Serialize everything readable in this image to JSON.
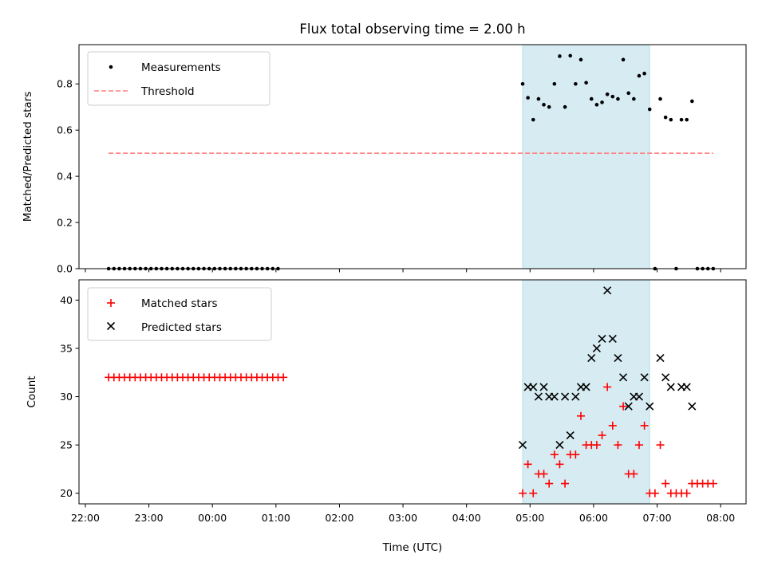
{
  "title": "Flux total observing time = 2.00 h",
  "xlabel": "Time (UTC)",
  "colors": {
    "measurement": "#000000",
    "threshold": "#ff7f7f",
    "matched": "#ff0000",
    "predicted": "#000000",
    "highlight": "#add8e6"
  },
  "chart_data": [
    {
      "type": "scatter",
      "ylabel": "Matched/Predicted stars",
      "xlim": [
        "21:54",
        "08:24"
      ],
      "ylim": [
        0,
        0.97
      ],
      "xticks": [
        "22:00",
        "23:00",
        "00:00",
        "01:00",
        "02:00",
        "03:00",
        "04:00",
        "05:00",
        "06:00",
        "07:00",
        "08:00"
      ],
      "yticks": [
        0.0,
        0.2,
        0.4,
        0.6,
        0.8
      ],
      "highlight_span": [
        "04:53",
        "06:53"
      ],
      "legend": {
        "placement": "upper-left",
        "entries": [
          "Measurements",
          "Threshold"
        ]
      },
      "threshold": {
        "name": "Threshold",
        "value": 0.5,
        "x": [
          "22:22",
          "07:53"
        ]
      },
      "series": [
        {
          "name": "Measurements",
          "points": [
            [
              "22:22",
              0
            ],
            [
              "22:27",
              0
            ],
            [
              "22:32",
              0
            ],
            [
              "22:37",
              0
            ],
            [
              "22:42",
              0
            ],
            [
              "22:47",
              0
            ],
            [
              "22:52",
              0
            ],
            [
              "22:57",
              0
            ],
            [
              "23:02",
              0
            ],
            [
              "23:07",
              0
            ],
            [
              "23:12",
              0
            ],
            [
              "23:17",
              0
            ],
            [
              "23:22",
              0
            ],
            [
              "23:27",
              0
            ],
            [
              "23:32",
              0
            ],
            [
              "23:37",
              0
            ],
            [
              "23:42",
              0
            ],
            [
              "23:47",
              0
            ],
            [
              "23:52",
              0
            ],
            [
              "23:57",
              0
            ],
            [
              "00:02",
              0
            ],
            [
              "00:07",
              0
            ],
            [
              "00:12",
              0
            ],
            [
              "00:17",
              0
            ],
            [
              "00:22",
              0
            ],
            [
              "00:27",
              0
            ],
            [
              "00:32",
              0
            ],
            [
              "00:37",
              0
            ],
            [
              "00:42",
              0
            ],
            [
              "00:47",
              0
            ],
            [
              "00:52",
              0
            ],
            [
              "00:57",
              0
            ],
            [
              "01:02",
              0
            ],
            [
              "04:53",
              0.8
            ],
            [
              "04:58",
              0.74
            ],
            [
              "05:03",
              0.645
            ],
            [
              "05:08",
              0.735
            ],
            [
              "05:13",
              0.71
            ],
            [
              "05:18",
              0.7
            ],
            [
              "05:23",
              0.8
            ],
            [
              "05:28",
              0.92
            ],
            [
              "05:33",
              0.7
            ],
            [
              "05:38",
              0.922
            ],
            [
              "05:43",
              0.8
            ],
            [
              "05:48",
              0.905
            ],
            [
              "05:53",
              0.805
            ],
            [
              "05:58",
              0.735
            ],
            [
              "06:03",
              0.71
            ],
            [
              "06:08",
              0.72
            ],
            [
              "06:13",
              0.755
            ],
            [
              "06:18",
              0.745
            ],
            [
              "06:23",
              0.735
            ],
            [
              "06:28",
              0.905
            ],
            [
              "06:33",
              0.76
            ],
            [
              "06:38",
              0.735
            ],
            [
              "06:43",
              0.835
            ],
            [
              "06:48",
              0.845
            ],
            [
              "06:53",
              0.69
            ],
            [
              "06:58",
              0
            ],
            [
              "07:03",
              0.735
            ],
            [
              "07:08",
              0.655
            ],
            [
              "07:13",
              0.645
            ],
            [
              "07:18",
              0
            ],
            [
              "07:23",
              0.645
            ],
            [
              "07:28",
              0.645
            ],
            [
              "07:33",
              0.725
            ],
            [
              "07:38",
              0
            ],
            [
              "07:43",
              0
            ],
            [
              "07:48",
              0
            ],
            [
              "07:53",
              0
            ]
          ]
        }
      ]
    },
    {
      "type": "scatter",
      "ylabel": "Count",
      "xlim": [
        "21:54",
        "08:24"
      ],
      "ylim": [
        18.9,
        42.1
      ],
      "xticks": [
        "22:00",
        "23:00",
        "00:00",
        "01:00",
        "02:00",
        "03:00",
        "04:00",
        "05:00",
        "06:00",
        "07:00",
        "08:00"
      ],
      "yticks": [
        20,
        25,
        30,
        35,
        40
      ],
      "highlight_span": [
        "04:53",
        "06:53"
      ],
      "legend": {
        "placement": "upper-left",
        "entries": [
          "Matched stars",
          "Predicted stars"
        ]
      },
      "series": [
        {
          "name": "Matched stars",
          "marker": "+",
          "points": [
            [
              "22:22",
              32
            ],
            [
              "22:27",
              32
            ],
            [
              "22:32",
              32
            ],
            [
              "22:37",
              32
            ],
            [
              "22:42",
              32
            ],
            [
              "22:47",
              32
            ],
            [
              "22:52",
              32
            ],
            [
              "22:57",
              32
            ],
            [
              "23:02",
              32
            ],
            [
              "23:07",
              32
            ],
            [
              "23:12",
              32
            ],
            [
              "23:17",
              32
            ],
            [
              "23:22",
              32
            ],
            [
              "23:27",
              32
            ],
            [
              "23:32",
              32
            ],
            [
              "23:37",
              32
            ],
            [
              "23:42",
              32
            ],
            [
              "23:47",
              32
            ],
            [
              "23:52",
              32
            ],
            [
              "23:57",
              32
            ],
            [
              "00:02",
              32
            ],
            [
              "00:07",
              32
            ],
            [
              "00:12",
              32
            ],
            [
              "00:17",
              32
            ],
            [
              "00:22",
              32
            ],
            [
              "00:27",
              32
            ],
            [
              "00:32",
              32
            ],
            [
              "00:37",
              32
            ],
            [
              "00:42",
              32
            ],
            [
              "00:47",
              32
            ],
            [
              "00:52",
              32
            ],
            [
              "00:57",
              32
            ],
            [
              "01:02",
              32
            ],
            [
              "01:07",
              32
            ],
            [
              "04:53",
              20
            ],
            [
              "04:58",
              23
            ],
            [
              "05:03",
              20
            ],
            [
              "05:08",
              22
            ],
            [
              "05:13",
              22
            ],
            [
              "05:18",
              21
            ],
            [
              "05:23",
              24
            ],
            [
              "05:28",
              23
            ],
            [
              "05:33",
              21
            ],
            [
              "05:38",
              24
            ],
            [
              "05:43",
              24
            ],
            [
              "05:48",
              28
            ],
            [
              "05:53",
              25
            ],
            [
              "05:58",
              25
            ],
            [
              "06:03",
              25
            ],
            [
              "06:08",
              26
            ],
            [
              "06:13",
              31
            ],
            [
              "06:18",
              27
            ],
            [
              "06:23",
              25
            ],
            [
              "06:28",
              29
            ],
            [
              "06:33",
              22
            ],
            [
              "06:38",
              22
            ],
            [
              "06:43",
              25
            ],
            [
              "06:48",
              27
            ],
            [
              "06:53",
              20
            ],
            [
              "06:58",
              20
            ],
            [
              "07:03",
              25
            ],
            [
              "07:08",
              21
            ],
            [
              "07:13",
              20
            ],
            [
              "07:18",
              20
            ],
            [
              "07:23",
              20
            ],
            [
              "07:28",
              20
            ],
            [
              "07:33",
              21
            ],
            [
              "07:38",
              21
            ],
            [
              "07:43",
              21
            ],
            [
              "07:48",
              21
            ],
            [
              "07:53",
              21
            ]
          ]
        },
        {
          "name": "Predicted stars",
          "marker": "x",
          "points": [
            [
              "04:53",
              25
            ],
            [
              "04:58",
              31
            ],
            [
              "05:03",
              31
            ],
            [
              "05:08",
              30
            ],
            [
              "05:13",
              31
            ],
            [
              "05:18",
              30
            ],
            [
              "05:23",
              30
            ],
            [
              "05:28",
              25
            ],
            [
              "05:33",
              30
            ],
            [
              "05:38",
              26
            ],
            [
              "05:43",
              30
            ],
            [
              "05:48",
              31
            ],
            [
              "05:53",
              31
            ],
            [
              "05:58",
              34
            ],
            [
              "06:03",
              35
            ],
            [
              "06:08",
              36
            ],
            [
              "06:13",
              41
            ],
            [
              "06:18",
              36
            ],
            [
              "06:23",
              34
            ],
            [
              "06:28",
              32
            ],
            [
              "06:33",
              29
            ],
            [
              "06:38",
              30
            ],
            [
              "06:43",
              30
            ],
            [
              "06:48",
              32
            ],
            [
              "06:53",
              29
            ],
            [
              "07:03",
              34
            ],
            [
              "07:08",
              32
            ],
            [
              "07:13",
              31
            ],
            [
              "07:23",
              31
            ],
            [
              "07:28",
              31
            ],
            [
              "07:33",
              29
            ]
          ]
        }
      ]
    }
  ]
}
